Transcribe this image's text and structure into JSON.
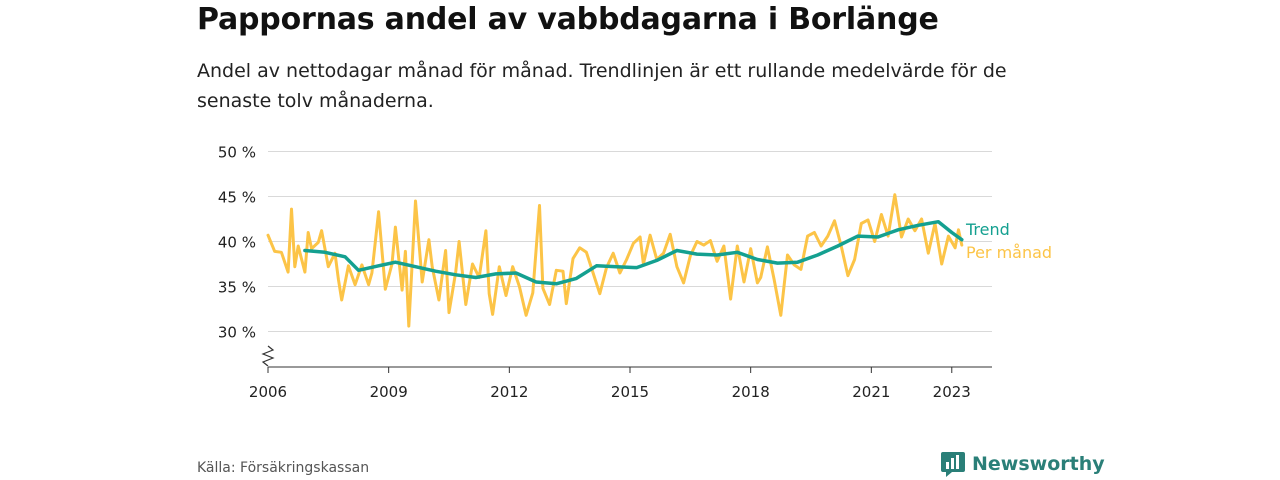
{
  "title": "Pappornas andel av vabbdagarna i Borlänge",
  "subtitle": "Andel av nettodagar månad för månad. Trendlinjen är ett rullande medelvärde för de senaste tolv månaderna.",
  "source": "Källa: Försäkringskassan",
  "brand": {
    "name": "Newsworthy",
    "icon": "newsworthy-chart-icon"
  },
  "colors": {
    "monthly": "#fcc447",
    "trend": "#14a090",
    "grid": "#d9d9d9",
    "axis": "#333333"
  },
  "chart_data": {
    "type": "line",
    "title": "Pappornas andel av vabbdagarna i Borlänge",
    "xlabel": "",
    "ylabel": "",
    "x_ticks": [
      "2006",
      "2009",
      "2012",
      "2015",
      "2018",
      "2021",
      "2023"
    ],
    "y_ticks": [
      "30 %",
      "35 %",
      "40 %",
      "45 %",
      "50 %"
    ],
    "ylim": [
      26,
      50
    ],
    "y_axis_break": true,
    "grid": "horizontal",
    "legend": "inline labels at right end of lines",
    "series": [
      {
        "name": "Per månad",
        "points": [
          [
            "2006-01",
            40.7
          ],
          [
            "2006-03",
            38.9
          ],
          [
            "2006-05",
            38.8
          ],
          [
            "2006-07",
            36.6
          ],
          [
            "2006-08",
            43.6
          ],
          [
            "2006-09",
            37.2
          ],
          [
            "2006-10",
            39.5
          ],
          [
            "2006-12",
            36.6
          ],
          [
            "2007-01",
            41.0
          ],
          [
            "2007-02",
            39.2
          ],
          [
            "2007-04",
            39.9
          ],
          [
            "2007-05",
            41.2
          ],
          [
            "2007-07",
            37.2
          ],
          [
            "2007-09",
            38.7
          ],
          [
            "2007-10",
            35.8
          ],
          [
            "2007-11",
            33.5
          ],
          [
            "2008-01",
            37.3
          ],
          [
            "2008-03",
            35.2
          ],
          [
            "2008-05",
            37.4
          ],
          [
            "2008-07",
            35.2
          ],
          [
            "2008-08",
            36.5
          ],
          [
            "2008-10",
            43.3
          ],
          [
            "2008-12",
            34.7
          ],
          [
            "2009-02",
            37.5
          ],
          [
            "2009-03",
            41.6
          ],
          [
            "2009-05",
            34.6
          ],
          [
            "2009-06",
            38.9
          ],
          [
            "2009-07",
            30.6
          ],
          [
            "2009-09",
            44.5
          ],
          [
            "2009-11",
            35.5
          ],
          [
            "2010-01",
            40.2
          ],
          [
            "2010-02",
            37.2
          ],
          [
            "2010-04",
            33.5
          ],
          [
            "2010-06",
            39.0
          ],
          [
            "2010-07",
            32.1
          ],
          [
            "2010-09",
            36.6
          ],
          [
            "2010-10",
            40.0
          ],
          [
            "2010-12",
            33.0
          ],
          [
            "2011-02",
            37.5
          ],
          [
            "2011-04",
            36.0
          ],
          [
            "2011-06",
            41.2
          ],
          [
            "2011-07",
            34.2
          ],
          [
            "2011-08",
            31.9
          ],
          [
            "2011-10",
            37.2
          ],
          [
            "2011-12",
            34.0
          ],
          [
            "2012-02",
            37.2
          ],
          [
            "2012-04",
            35.0
          ],
          [
            "2012-06",
            31.8
          ],
          [
            "2012-08",
            34.3
          ],
          [
            "2012-10",
            44.0
          ],
          [
            "2012-11",
            34.8
          ],
          [
            "2013-01",
            33.0
          ],
          [
            "2013-03",
            36.8
          ],
          [
            "2013-05",
            36.7
          ],
          [
            "2013-06",
            33.1
          ],
          [
            "2013-08",
            38.1
          ],
          [
            "2013-10",
            39.3
          ],
          [
            "2013-12",
            38.8
          ],
          [
            "2014-02",
            36.5
          ],
          [
            "2014-04",
            34.2
          ],
          [
            "2014-06",
            37.1
          ],
          [
            "2014-08",
            38.7
          ],
          [
            "2014-10",
            36.5
          ],
          [
            "2014-12",
            38.0
          ],
          [
            "2015-02",
            39.8
          ],
          [
            "2015-04",
            40.5
          ],
          [
            "2015-05",
            37.5
          ],
          [
            "2015-07",
            40.7
          ],
          [
            "2015-09",
            38.0
          ],
          [
            "2015-11",
            38.7
          ],
          [
            "2016-01",
            40.8
          ],
          [
            "2016-03",
            37.2
          ],
          [
            "2016-05",
            35.4
          ],
          [
            "2016-07",
            38.4
          ],
          [
            "2016-09",
            40.0
          ],
          [
            "2016-11",
            39.6
          ],
          [
            "2017-01",
            40.1
          ],
          [
            "2017-03",
            37.8
          ],
          [
            "2017-05",
            39.5
          ],
          [
            "2017-07",
            33.6
          ],
          [
            "2017-09",
            39.5
          ],
          [
            "2017-11",
            35.5
          ],
          [
            "2018-01",
            39.2
          ],
          [
            "2018-03",
            35.4
          ],
          [
            "2018-04",
            36.0
          ],
          [
            "2018-06",
            39.4
          ],
          [
            "2018-08",
            35.8
          ],
          [
            "2018-10",
            31.8
          ],
          [
            "2018-12",
            38.5
          ],
          [
            "2019-02",
            37.4
          ],
          [
            "2019-04",
            36.9
          ],
          [
            "2019-06",
            40.6
          ],
          [
            "2019-08",
            41.0
          ],
          [
            "2019-10",
            39.5
          ],
          [
            "2019-12",
            40.6
          ],
          [
            "2020-02",
            42.3
          ],
          [
            "2020-04",
            39.5
          ],
          [
            "2020-06",
            36.2
          ],
          [
            "2020-08",
            38.0
          ],
          [
            "2020-10",
            42.0
          ],
          [
            "2020-12",
            42.4
          ],
          [
            "2021-02",
            40.0
          ],
          [
            "2021-04",
            43.0
          ],
          [
            "2021-06",
            40.6
          ],
          [
            "2021-08",
            45.2
          ],
          [
            "2021-10",
            40.5
          ],
          [
            "2021-12",
            42.5
          ],
          [
            "2022-02",
            41.2
          ],
          [
            "2022-04",
            42.5
          ],
          [
            "2022-06",
            38.7
          ],
          [
            "2022-08",
            42.0
          ],
          [
            "2022-10",
            37.5
          ],
          [
            "2022-12",
            40.6
          ],
          [
            "2023-02",
            39.3
          ],
          [
            "2023-03",
            41.3
          ],
          [
            "2023-04",
            39.6
          ]
        ]
      },
      {
        "name": "Trend",
        "points": [
          [
            "2006-12",
            39.0
          ],
          [
            "2007-06",
            38.8
          ],
          [
            "2007-12",
            38.3
          ],
          [
            "2008-04",
            36.8
          ],
          [
            "2008-10",
            37.3
          ],
          [
            "2009-03",
            37.7
          ],
          [
            "2009-09",
            37.2
          ],
          [
            "2010-03",
            36.7
          ],
          [
            "2010-09",
            36.3
          ],
          [
            "2011-03",
            36.0
          ],
          [
            "2011-09",
            36.4
          ],
          [
            "2012-03",
            36.5
          ],
          [
            "2012-09",
            35.5
          ],
          [
            "2013-03",
            35.3
          ],
          [
            "2013-09",
            35.9
          ],
          [
            "2014-03",
            37.3
          ],
          [
            "2014-09",
            37.2
          ],
          [
            "2015-03",
            37.1
          ],
          [
            "2015-09",
            37.9
          ],
          [
            "2016-03",
            39.0
          ],
          [
            "2016-09",
            38.6
          ],
          [
            "2017-03",
            38.5
          ],
          [
            "2017-09",
            38.8
          ],
          [
            "2018-03",
            38.0
          ],
          [
            "2018-09",
            37.6
          ],
          [
            "2019-03",
            37.7
          ],
          [
            "2019-09",
            38.5
          ],
          [
            "2020-03",
            39.5
          ],
          [
            "2020-09",
            40.6
          ],
          [
            "2021-03",
            40.5
          ],
          [
            "2021-09",
            41.3
          ],
          [
            "2022-03",
            41.8
          ],
          [
            "2022-09",
            42.2
          ],
          [
            "2023-01",
            41.0
          ],
          [
            "2023-04",
            40.2
          ]
        ]
      }
    ]
  }
}
